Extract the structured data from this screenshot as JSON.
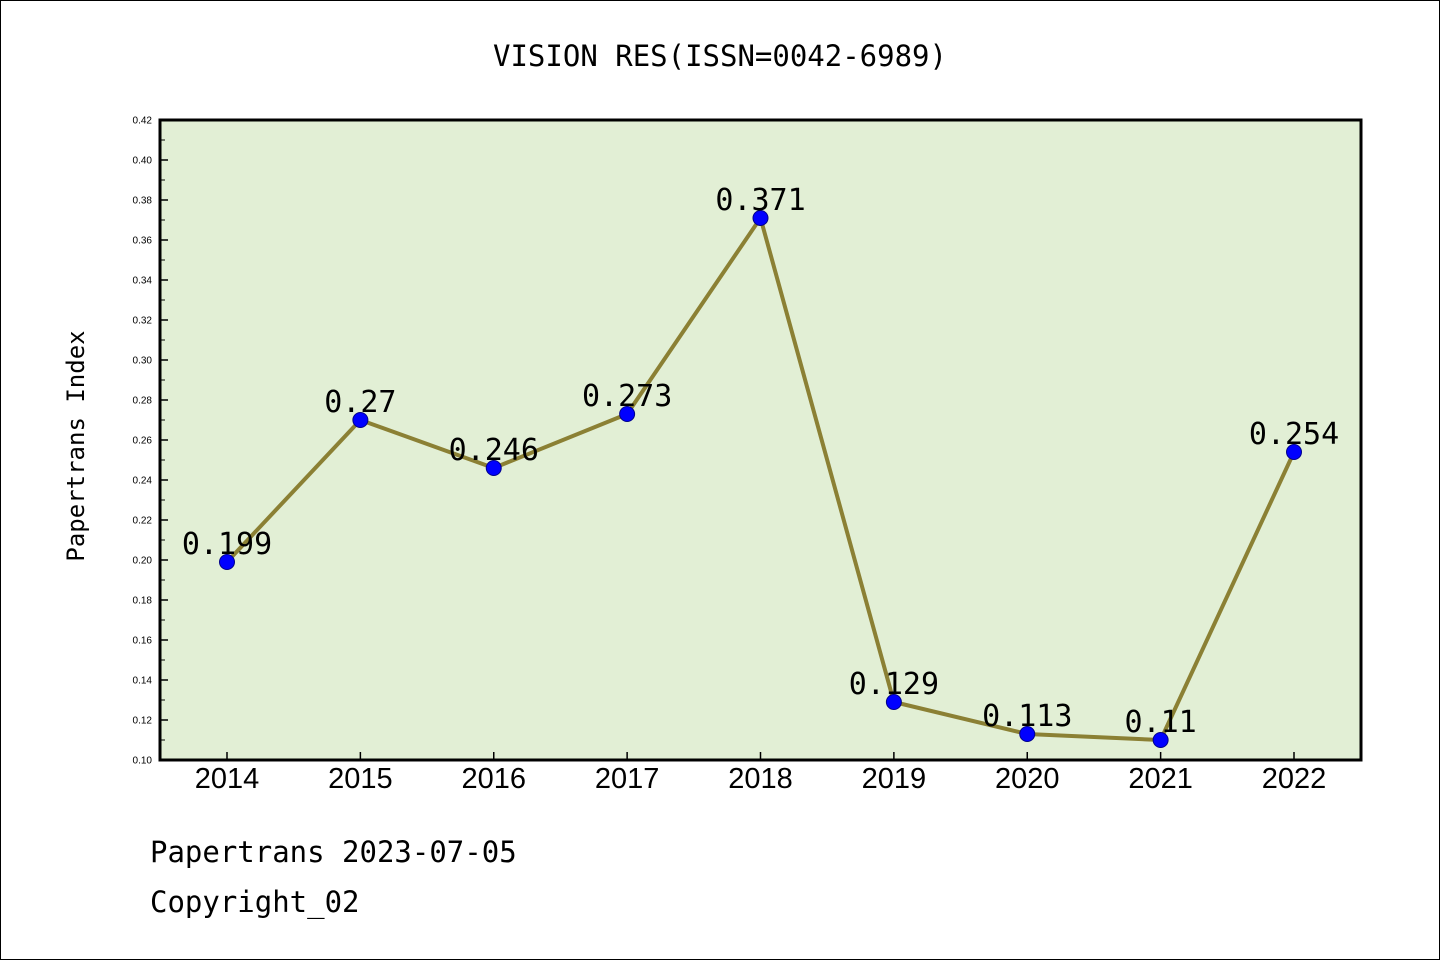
{
  "chart_data": {
    "type": "line",
    "title": "VISION RES(ISSN=0042-6989)",
    "xlabel": "",
    "ylabel": "Papertrans Index",
    "categories": [
      "2014",
      "2015",
      "2016",
      "2017",
      "2018",
      "2019",
      "2020",
      "2021",
      "2022"
    ],
    "values": [
      0.199,
      0.27,
      0.246,
      0.273,
      0.371,
      0.129,
      0.113,
      0.11,
      0.254
    ],
    "data_labels": [
      "0.199",
      "0.27",
      "0.246",
      "0.273",
      "0.371",
      "0.129",
      "0.113",
      "0.11",
      "0.254"
    ],
    "ylim": [
      0.1,
      0.42
    ],
    "yticks": [
      "0.10",
      "0.12",
      "0.14",
      "0.16",
      "0.18",
      "0.20",
      "0.22",
      "0.24",
      "0.26",
      "0.28",
      "0.30",
      "0.32",
      "0.34",
      "0.36",
      "0.38",
      "0.40",
      "0.42"
    ],
    "grid": false,
    "legend": "none",
    "colors": {
      "plot_bg": "#e2efd5",
      "line": "#8b8034",
      "marker": "#0000ff"
    }
  },
  "footer": {
    "line1": "Papertrans 2023-07-05",
    "line2": "Copyright_02"
  }
}
